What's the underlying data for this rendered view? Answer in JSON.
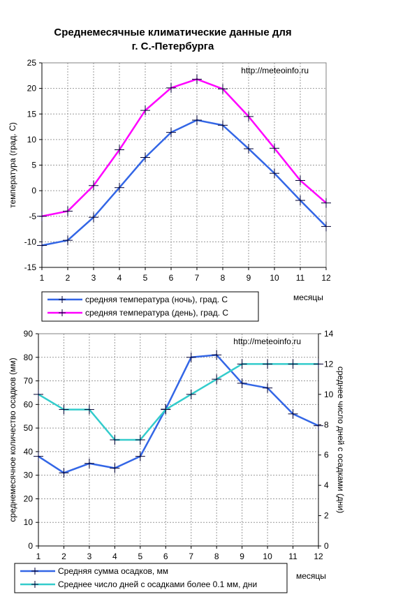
{
  "page": {
    "title_line1": "Среднемесячные климатические данные для",
    "title_line2": "г.  С.-Петербурга"
  },
  "chart_data": [
    {
      "type": "line",
      "watermark": "http://meteoinfo.ru",
      "x": [
        1,
        2,
        3,
        4,
        5,
        6,
        7,
        8,
        9,
        10,
        11,
        12
      ],
      "xlabel": "месяцы",
      "ylabel": "температура (град. С)",
      "ylim": [
        -15,
        25
      ],
      "yticks": [
        -15,
        -10,
        -5,
        0,
        5,
        10,
        15,
        20,
        25
      ],
      "grid": true,
      "legend_position": "bottom-left",
      "series": [
        {
          "name": "средняя температура (ночь), град. С",
          "color": "#3366e6",
          "values": [
            -10.7,
            -9.7,
            -5.2,
            0.6,
            6.5,
            11.4,
            13.8,
            12.8,
            8.2,
            3.4,
            -1.9,
            -7.0
          ]
        },
        {
          "name": "средняя температура (день), град. С",
          "color": "#ff00ff",
          "values": [
            -5.0,
            -4.0,
            1.0,
            8.0,
            15.7,
            20.1,
            21.8,
            19.9,
            14.5,
            8.3,
            2.0,
            -2.4
          ]
        }
      ]
    },
    {
      "type": "line",
      "watermark": "http://meteoinfo.ru",
      "x": [
        1,
        2,
        3,
        4,
        5,
        6,
        7,
        8,
        9,
        10,
        11,
        12
      ],
      "xlabel": "месяцы",
      "ylabel": "среднемесячное количество осадков (мм)",
      "ylabel_right": "среднее число дней с осадками (дни)",
      "ylim": [
        0,
        90
      ],
      "yticks": [
        0,
        10,
        20,
        30,
        40,
        50,
        60,
        70,
        80,
        90
      ],
      "ylim_right": [
        0,
        14
      ],
      "yticks_right": [
        0,
        2,
        4,
        6,
        8,
        10,
        12,
        14
      ],
      "grid": true,
      "legend_position": "bottom-left",
      "series": [
        {
          "name": "Средняя сумма осадков, мм",
          "color": "#3366e6",
          "axis": "left",
          "values": [
            38,
            31,
            35,
            33,
            38,
            58,
            80,
            81,
            69,
            67,
            56,
            51
          ]
        },
        {
          "name": "Среднее число дней с  осадками более 0.1 мм, дни",
          "color": "#33cccc",
          "axis": "right",
          "values": [
            10,
            9,
            9,
            7,
            7,
            9,
            10,
            11,
            12,
            12,
            12,
            12
          ]
        }
      ]
    }
  ]
}
